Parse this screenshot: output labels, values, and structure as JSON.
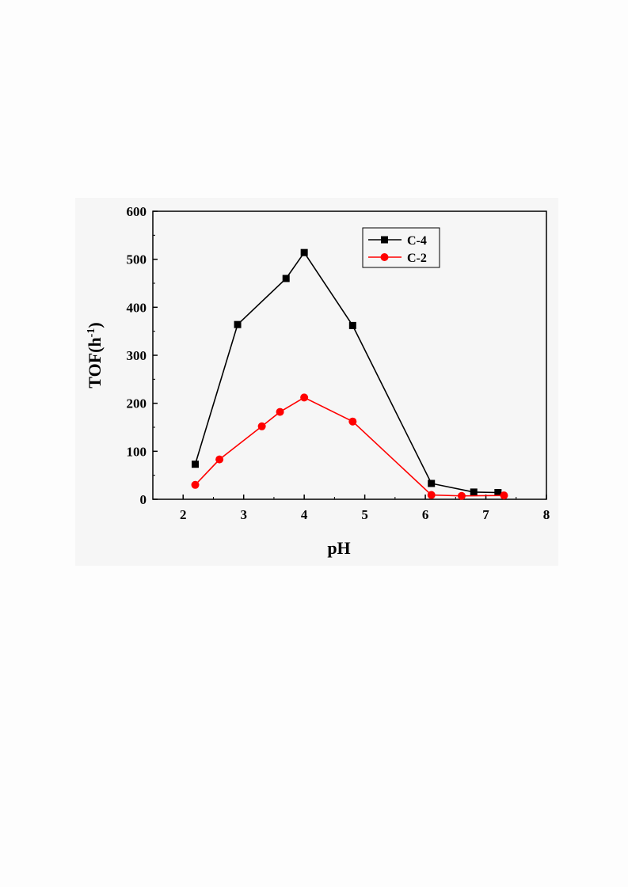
{
  "chart_data": {
    "type": "line",
    "xlabel": "pH",
    "ylabel": "TOF(h",
    "ylabel_sup": "-1",
    "ylabel_close": ")",
    "xlim": [
      1.5,
      8
    ],
    "ylim": [
      0,
      600
    ],
    "xticks": [
      "2",
      "3",
      "4",
      "5",
      "6",
      "7",
      "8"
    ],
    "yticks": [
      "0",
      "100",
      "200",
      "300",
      "400",
      "500",
      "600"
    ],
    "grid": false,
    "legend_position": "top-right",
    "series": [
      {
        "name": "C-4",
        "color": "#000000",
        "marker": "square",
        "x": [
          2.2,
          2.9,
          3.7,
          4.0,
          4.8,
          6.1,
          6.8,
          7.2
        ],
        "y": [
          73,
          364,
          460,
          514,
          362,
          33,
          15,
          14
        ]
      },
      {
        "name": "C-2",
        "color": "#ff0000",
        "marker": "circle",
        "x": [
          2.2,
          2.6,
          3.3,
          3.6,
          4.0,
          4.8,
          6.1,
          6.6,
          7.3
        ],
        "y": [
          30,
          83,
          152,
          182,
          212,
          162,
          9,
          7,
          8
        ]
      }
    ]
  }
}
